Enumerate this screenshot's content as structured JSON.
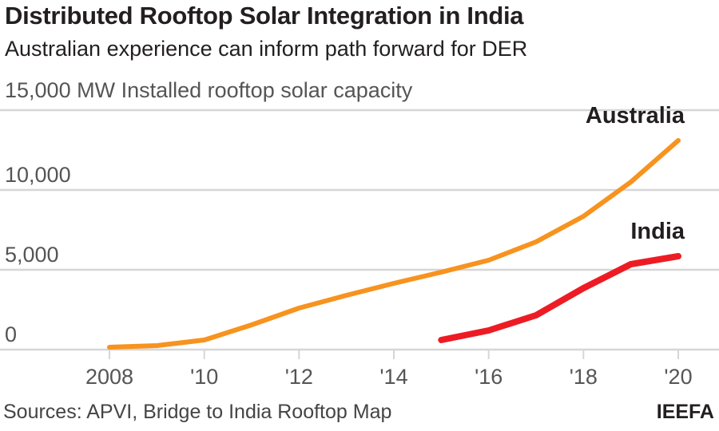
{
  "title": "Distributed Rooftop Solar Integration in India",
  "subtitle": "Australian experience can inform path forward for DER",
  "source": "Sources: APVI, Bridge to India Rooftop Map",
  "brand": "IEEFA",
  "chart_data": {
    "type": "line",
    "title": "Distributed Rooftop Solar Integration in India",
    "ylabel": "MW Installed rooftop solar capacity",
    "ylim": [
      0,
      15000
    ],
    "yticks": [
      0,
      5000,
      10000,
      15000
    ],
    "ytick_labels": [
      "0",
      "5,000",
      "10,000",
      "15,000"
    ],
    "xlim": [
      2008,
      2020
    ],
    "xticks": [
      2008,
      2010,
      2012,
      2014,
      2016,
      2018,
      2020
    ],
    "xtick_labels": [
      "2008",
      "'10",
      "'12",
      "'14",
      "'16",
      "'18",
      "'20"
    ],
    "grid": true,
    "series": [
      {
        "name": "Australia",
        "color": "#f7931e",
        "x": [
          2008,
          2009,
          2010,
          2011,
          2012,
          2013,
          2014,
          2015,
          2016,
          2017,
          2018,
          2019,
          2020
        ],
        "values": [
          150,
          250,
          600,
          1550,
          2600,
          3400,
          4150,
          4850,
          5600,
          6750,
          8350,
          10500,
          13100
        ]
      },
      {
        "name": "India",
        "color": "#ed1c24",
        "x": [
          2015,
          2016,
          2017,
          2018,
          2019,
          2020
        ],
        "values": [
          600,
          1200,
          2150,
          3850,
          5350,
          5850
        ]
      }
    ]
  }
}
